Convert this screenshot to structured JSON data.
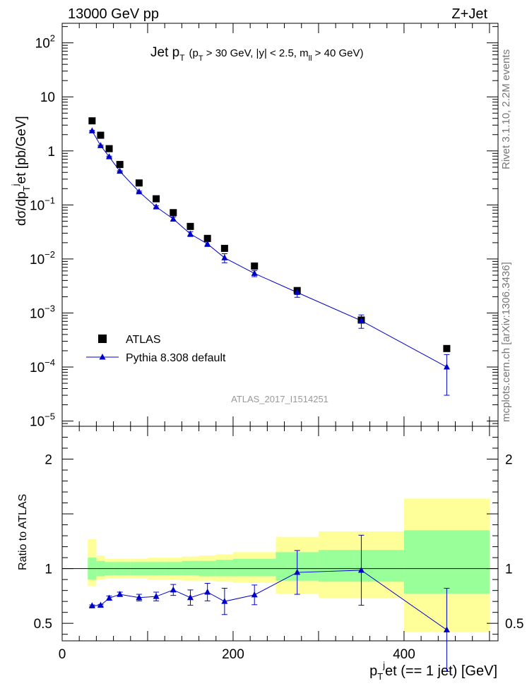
{
  "header": {
    "left": "13000 GeV pp",
    "right": "Z+Jet"
  },
  "side_labels": {
    "rivet": "Rivet 3.1.10,  2.2M events",
    "mcplots": "mcplots.cern.ch [arXiv:1306.3436]"
  },
  "watermark": "ATLAS_2017_I1514251",
  "chart_data": [
    {
      "type": "scatter",
      "panel": "main",
      "title": {
        "main": "Jet p",
        "main_sub": "T",
        "paren": "(p",
        "paren_sub1": "T",
        "cut1": " > 30 GeV, |y| < 2.5, m",
        "paren_sub2": "ll",
        "cut2": " > 40 GeV)"
      },
      "ylabel": {
        "a": "dσ/dp",
        "sub": "T",
        "sup": "j",
        "b": "et [pb/GeV]"
      },
      "yscale": "log",
      "ylim": [
        8e-06,
        230
      ],
      "xlim": [
        0,
        510
      ],
      "y_ticks": [
        {
          "v": 1e-05,
          "base": "10",
          "exp": "−5"
        },
        {
          "v": 0.0001,
          "base": "10",
          "exp": "−4"
        },
        {
          "v": 0.001,
          "base": "10",
          "exp": "−3"
        },
        {
          "v": 0.01,
          "base": "10",
          "exp": "−2"
        },
        {
          "v": 0.1,
          "base": "10",
          "exp": "−1"
        },
        {
          "v": 1,
          "base": "1",
          "exp": ""
        },
        {
          "v": 10,
          "base": "10",
          "exp": ""
        },
        {
          "v": 100,
          "base": "10",
          "exp": "2"
        }
      ],
      "legend": {
        "placement": "lower-left",
        "entries": [
          "ATLAS",
          "Pythia 8.308 default"
        ]
      },
      "series": [
        {
          "name": "ATLAS",
          "marker": "square",
          "color": "#000000",
          "x": [
            35,
            45,
            55,
            67.5,
            90,
            110,
            130,
            150,
            170,
            190,
            225,
            275,
            350,
            450
          ],
          "y": [
            3.6,
            1.95,
            1.1,
            0.56,
            0.255,
            0.13,
            0.072,
            0.04,
            0.024,
            0.0157,
            0.0074,
            0.0026,
            0.00074,
            0.00022
          ]
        },
        {
          "name": "Pythia 8.308 default",
          "marker": "triangle",
          "color": "#0000cc",
          "x": [
            35,
            45,
            55,
            67.5,
            90,
            110,
            130,
            150,
            170,
            190,
            225,
            275,
            350,
            450
          ],
          "y": [
            2.35,
            1.25,
            0.78,
            0.42,
            0.175,
            0.092,
            0.055,
            0.029,
            0.019,
            0.0105,
            0.0054,
            0.0024,
            0.00072,
            0.0001
          ],
          "yerr_lo": [
            0.05,
            0.03,
            0.02,
            0.01,
            0.005,
            0.004,
            0.005,
            0.003,
            0.002,
            0.002,
            0.0007,
            0.00045,
            0.0002,
            7e-05
          ],
          "yerr_hi": [
            0.05,
            0.03,
            0.02,
            0.01,
            0.005,
            0.004,
            0.005,
            0.003,
            0.002,
            0.002,
            0.0007,
            0.00045,
            0.0002,
            7e-05
          ]
        }
      ]
    },
    {
      "type": "scatter",
      "panel": "ratio",
      "ylabel": "Ratio to ATLAS",
      "xlabel": {
        "a": "p",
        "sub": "T",
        "sup": "j",
        "b": "et (== 1 jet) [GeV]"
      },
      "xlim": [
        0,
        510
      ],
      "ylim": [
        0.34,
        2.3
      ],
      "x_ticks": [
        0,
        200,
        400
      ],
      "y_ticks": [
        0.5,
        1,
        2
      ],
      "reference_line": 1,
      "bands": [
        {
          "x0": 30,
          "x1": 40,
          "y_lo": 0.9,
          "y_hi": 1.1,
          "yy_lo": 0.84,
          "yy_hi": 1.27
        },
        {
          "x0": 40,
          "x1": 50,
          "y_lo": 0.93,
          "y_hi": 1.07,
          "yy_lo": 0.9,
          "yy_hi": 1.12
        },
        {
          "x0": 50,
          "x1": 60,
          "y_lo": 0.94,
          "y_hi": 1.06,
          "yy_lo": 0.91,
          "yy_hi": 1.09
        },
        {
          "x0": 60,
          "x1": 80,
          "y_lo": 0.94,
          "y_hi": 1.06,
          "yy_lo": 0.91,
          "yy_hi": 1.09
        },
        {
          "x0": 80,
          "x1": 100,
          "y_lo": 0.94,
          "y_hi": 1.06,
          "yy_lo": 0.91,
          "yy_hi": 1.09
        },
        {
          "x0": 100,
          "x1": 120,
          "y_lo": 0.94,
          "y_hi": 1.06,
          "yy_lo": 0.9,
          "yy_hi": 1.1
        },
        {
          "x0": 120,
          "x1": 140,
          "y_lo": 0.94,
          "y_hi": 1.06,
          "yy_lo": 0.9,
          "yy_hi": 1.1
        },
        {
          "x0": 140,
          "x1": 160,
          "y_lo": 0.94,
          "y_hi": 1.07,
          "yy_lo": 0.89,
          "yy_hi": 1.11
        },
        {
          "x0": 160,
          "x1": 180,
          "y_lo": 0.93,
          "y_hi": 1.07,
          "yy_lo": 0.89,
          "yy_hi": 1.12
        },
        {
          "x0": 180,
          "x1": 200,
          "y_lo": 0.93,
          "y_hi": 1.08,
          "yy_lo": 0.88,
          "yy_hi": 1.13
        },
        {
          "x0": 200,
          "x1": 250,
          "y_lo": 0.93,
          "y_hi": 1.09,
          "yy_lo": 0.87,
          "yy_hi": 1.15
        },
        {
          "x0": 250,
          "x1": 300,
          "y_lo": 0.89,
          "y_hi": 1.15,
          "yy_lo": 0.77,
          "yy_hi": 1.29
        },
        {
          "x0": 300,
          "x1": 400,
          "y_lo": 0.88,
          "y_hi": 1.17,
          "yy_lo": 0.73,
          "yy_hi": 1.34
        },
        {
          "x0": 400,
          "x1": 500,
          "y_lo": 0.77,
          "y_hi": 1.35,
          "yy_lo": 0.42,
          "yy_hi": 1.64
        }
      ],
      "series": [
        {
          "name": "Pythia 8.308 default",
          "marker": "triangle",
          "color": "#0000cc",
          "x": [
            35,
            45,
            55,
            67.5,
            90,
            110,
            130,
            150,
            170,
            190,
            225,
            275,
            350,
            450
          ],
          "y": [
            0.66,
            0.665,
            0.73,
            0.765,
            0.735,
            0.745,
            0.805,
            0.735,
            0.785,
            0.7,
            0.76,
            0.965,
            0.985,
            0.44
          ],
          "yerr": [
            0.008,
            0.008,
            0.02,
            0.02,
            0.03,
            0.04,
            0.05,
            0.07,
            0.08,
            0.12,
            0.09,
            0.2,
            0.32,
            0.38
          ]
        }
      ]
    }
  ]
}
